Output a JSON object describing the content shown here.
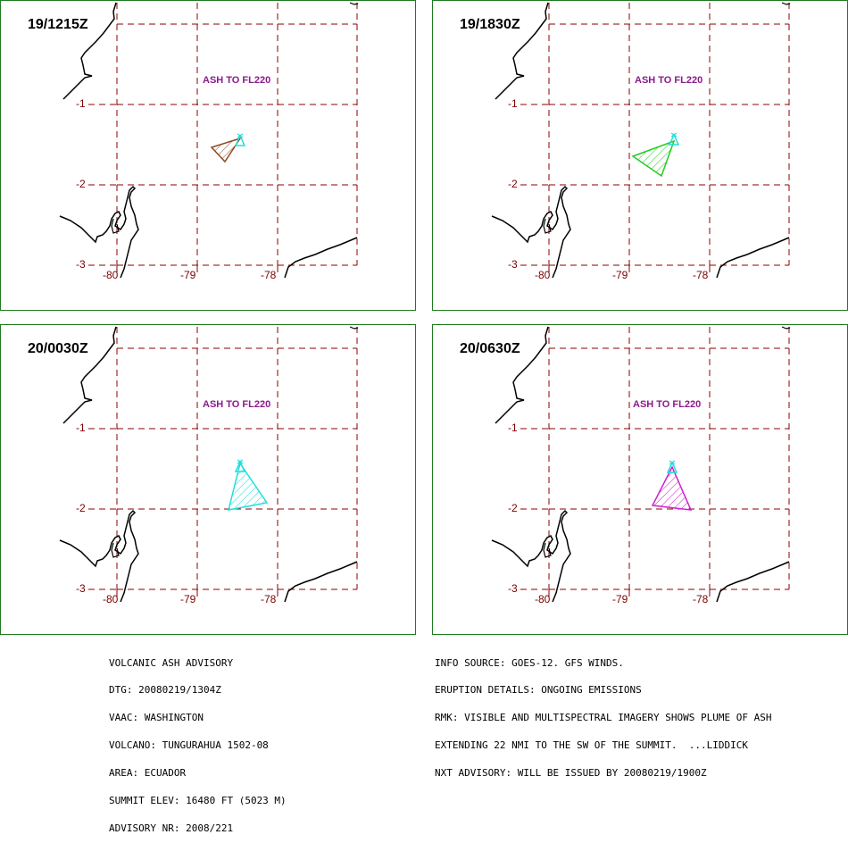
{
  "panels": [
    {
      "time": "19/1215Z",
      "ash": "ASH TO FL220",
      "plume_color": "#8b4a24"
    },
    {
      "time": "19/1830Z",
      "ash": "ASH TO FL220",
      "plume_color": "#22cc22"
    },
    {
      "time": "20/0030Z",
      "ash": "ASH TO FL220",
      "plume_color": "#22dddd"
    },
    {
      "time": "20/0630Z",
      "ash": "ASH TO FL220",
      "plume_color": "#cc22cc"
    }
  ],
  "axes": {
    "lat_labels": [
      "-1",
      "-2",
      "-3"
    ],
    "lon_labels": [
      "-80",
      "-79",
      "-78"
    ],
    "grid_color": "#8b0000",
    "coast_color": "#000000",
    "volcano_color": "#22dddd"
  },
  "advisory_left": [
    "VOLCANIC ASH ADVISORY",
    "DTG: 20080219/1304Z",
    "VAAC: WASHINGTON",
    "VOLCANO: TUNGURAHUA 1502-08",
    "AREA: ECUADOR",
    "SUMMIT ELEV: 16480 FT (5023 M)",
    "ADVISORY NR: 2008/221"
  ],
  "advisory_right": [
    "INFO SOURCE: GOES-12. GFS WINDS.",
    "ERUPTION DETAILS: ONGOING EMISSIONS",
    "RMK: VISIBLE AND MULTISPECTRAL IMAGERY SHOWS PLUME OF ASH",
    "EXTENDING 22 NMI TO THE SW OF THE SUMMIT.  ...LIDDICK",
    "NXT ADVISORY: WILL BE ISSUED BY 20080219/1900Z"
  ]
}
